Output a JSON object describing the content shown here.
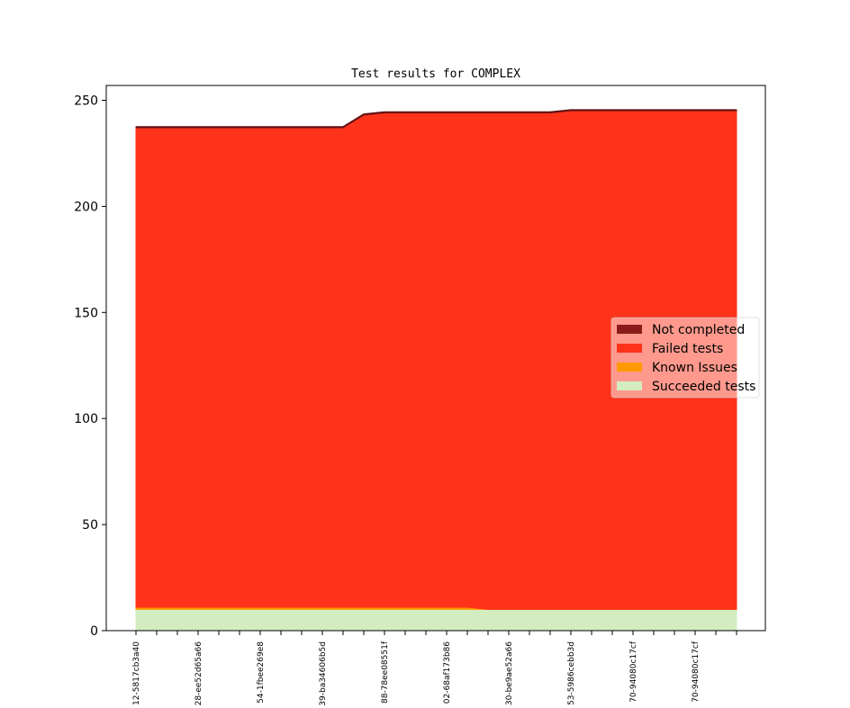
{
  "chart_data": {
    "type": "area",
    "stacked": true,
    "title": "Test results for COMPLEX",
    "xlabel": "",
    "ylabel": "",
    "ylim": [
      0,
      257
    ],
    "yticks": [
      0,
      50,
      100,
      150,
      200,
      250
    ],
    "grid": false,
    "legend_position": "center-right",
    "x_labels": [
      "12-5817cb3a40",
      "28-ee52d65a66",
      "54-1fbee269e8",
      "39-ba34606b5d",
      "88-78ee08551f",
      "02-68af173b86",
      "30-be9ae52a66",
      "53-5986cebb3d",
      "70-94080c17cf",
      "70-94080c17cf"
    ],
    "series": [
      {
        "name": "Succeeded tests",
        "color": "#d3edc0",
        "values": [
          10,
          10,
          10,
          10,
          10,
          10,
          10,
          10,
          10,
          10,
          10,
          10,
          10,
          10,
          10,
          10,
          10,
          10,
          10,
          10,
          10,
          10,
          10,
          10,
          10,
          10,
          10,
          10,
          10,
          10
        ]
      },
      {
        "name": "Known Issues",
        "color": "#ff9900",
        "values": [
          1,
          1,
          1,
          1,
          1,
          1,
          1,
          1,
          1,
          1,
          1,
          1,
          1,
          1,
          1,
          1,
          1,
          0,
          0,
          0,
          0,
          0,
          0,
          0,
          0,
          0,
          0,
          0,
          0,
          0
        ]
      },
      {
        "name": "Failed tests",
        "color": "#ff331a",
        "values": [
          226,
          226,
          226,
          226,
          226,
          226,
          226,
          226,
          226,
          226,
          226,
          232,
          233,
          233,
          233,
          233,
          233,
          234,
          234,
          234,
          234,
          235,
          235,
          235,
          235,
          235,
          235,
          235,
          235,
          235
        ]
      },
      {
        "name": "Not completed",
        "color": "#8b1a1a",
        "values": [
          0.5,
          0.5,
          0.5,
          0.5,
          0.5,
          0.5,
          0.5,
          0.5,
          0.5,
          0.5,
          0.5,
          0.5,
          0.5,
          0.5,
          0.5,
          0.5,
          0.5,
          0.5,
          0.5,
          0.5,
          0.5,
          0.5,
          0.5,
          0.5,
          0.5,
          0.5,
          0.5,
          0.5,
          0.5,
          0.5
        ]
      }
    ],
    "legend_order": [
      "Not completed",
      "Failed tests",
      "Known Issues",
      "Succeeded tests"
    ]
  }
}
